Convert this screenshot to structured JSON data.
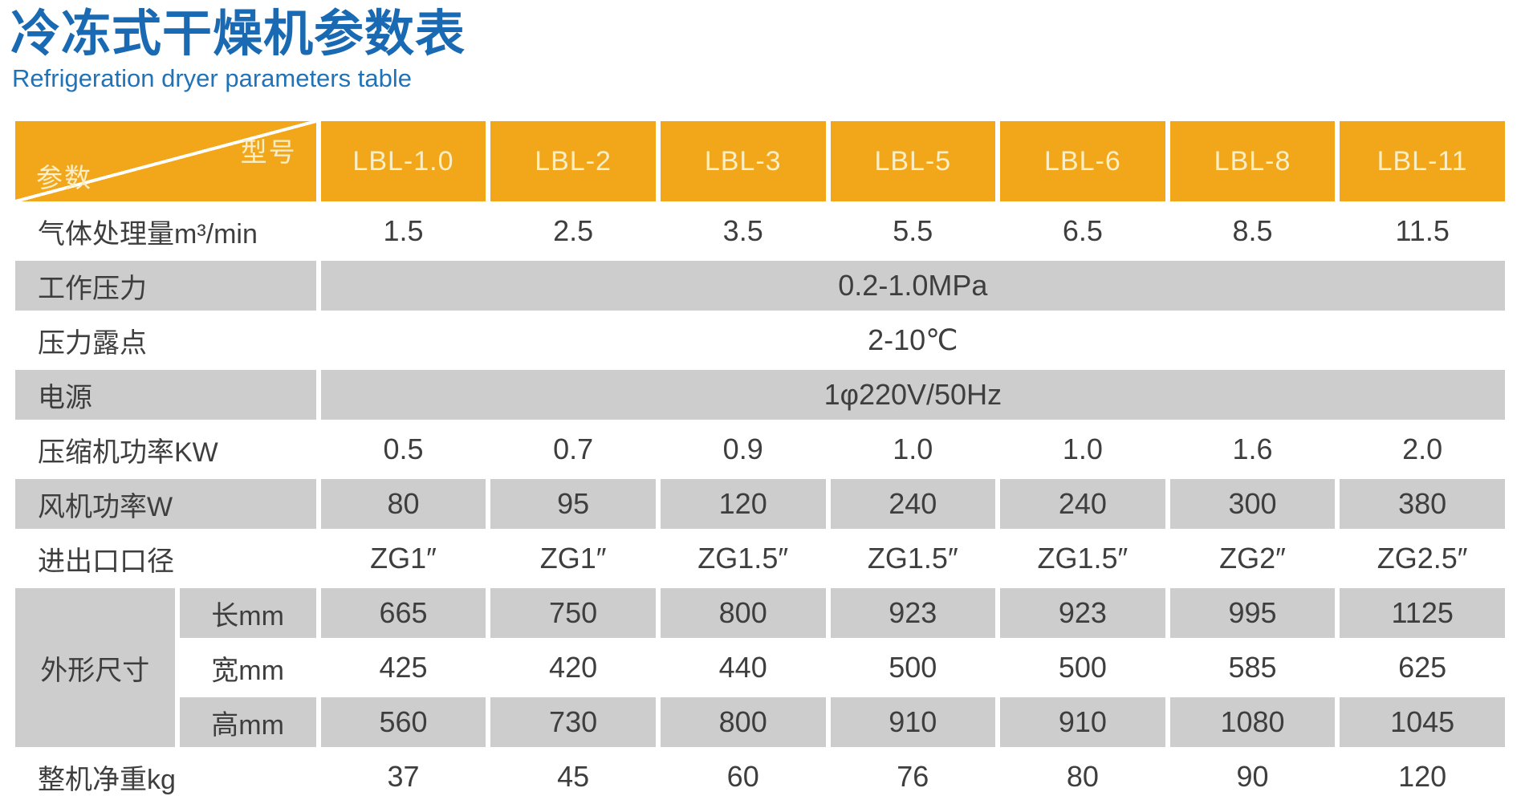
{
  "page": {
    "title": "冷冻式干燥机参数表",
    "subtitle": "Refrigeration dryer parameters table"
  },
  "colors": {
    "accent_orange": "#F2A71B",
    "row_gray": "#CDCDCD",
    "title_blue": "#1A6AB3",
    "header_text": "#F9EEC6",
    "body_text": "#3E3E3E"
  },
  "table": {
    "corner": {
      "top_right": "型号",
      "bottom_left": "参数"
    },
    "models": [
      "LBL-1.0",
      "LBL-2",
      "LBL-3",
      "LBL-5",
      "LBL-6",
      "LBL-8",
      "LBL-11"
    ],
    "rows": {
      "air_capacity": {
        "label": "气体处理量m³/min",
        "values": [
          "1.5",
          "2.5",
          "3.5",
          "5.5",
          "6.5",
          "8.5",
          "11.5"
        ]
      },
      "working_pressure": {
        "label": "工作压力",
        "value": "0.2-1.0MPa"
      },
      "pressure_dew_point": {
        "label": "压力露点",
        "value": "2-10℃"
      },
      "power_supply": {
        "label": "电源",
        "value": "1φ220V/50Hz"
      },
      "compressor_power": {
        "label": "压缩机功率KW",
        "values": [
          "0.5",
          "0.7",
          "0.9",
          "1.0",
          "1.0",
          "1.6",
          "2.0"
        ]
      },
      "fan_power": {
        "label": "风机功率W",
        "values": [
          "80",
          "95",
          "120",
          "240",
          "240",
          "300",
          "380"
        ]
      },
      "port_size": {
        "label": "进出口口径",
        "values": [
          "ZG1″",
          "ZG1″",
          "ZG1.5″",
          "ZG1.5″",
          "ZG1.5″",
          "ZG2″",
          "ZG2.5″"
        ]
      },
      "dimensions": {
        "label": "外形尺寸",
        "length": {
          "label": "长mm",
          "values": [
            "665",
            "750",
            "800",
            "923",
            "923",
            "995",
            "1125"
          ]
        },
        "width": {
          "label": "宽mm",
          "values": [
            "425",
            "420",
            "440",
            "500",
            "500",
            "585",
            "625"
          ]
        },
        "height": {
          "label": "高mm",
          "values": [
            "560",
            "730",
            "800",
            "910",
            "910",
            "1080",
            "1045"
          ]
        }
      },
      "net_weight": {
        "label": "整机净重kg",
        "values": [
          "37",
          "45",
          "60",
          "76",
          "80",
          "90",
          "120"
        ]
      }
    }
  }
}
